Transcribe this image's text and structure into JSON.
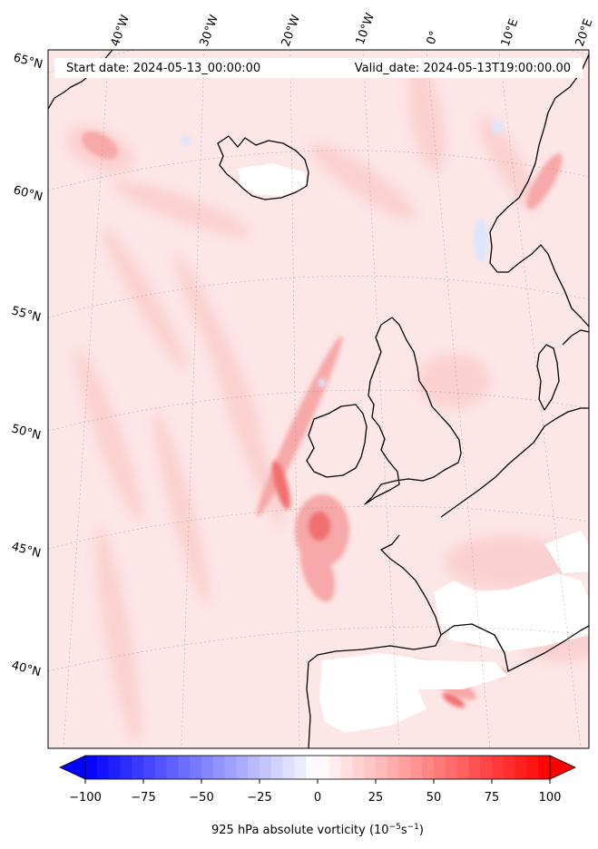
{
  "header": {
    "start_date": "Start date: 2024-05-13_00:00:00",
    "valid_date": "Valid_date: 2024-05-13T19:00:00.00"
  },
  "longitude_labels": [
    "40°W",
    "30°W",
    "20°W",
    "10°W",
    "0°",
    "10°E",
    "20°E"
  ],
  "latitude_labels": [
    "65°N",
    "60°N",
    "55°N",
    "50°N",
    "45°N",
    "40°N"
  ],
  "colorbar": {
    "tick_labels": [
      "−100",
      "−75",
      "−50",
      "−25",
      "0",
      "25",
      "50",
      "75",
      "100"
    ],
    "label": "925 hPa absolute vorticity (10",
    "label_exp1": "−5",
    "label_mid": "s",
    "label_exp2": "−1",
    "label_end": ")",
    "min_color": "#0000ff",
    "mid_color": "#ffffff",
    "max_color": "#ff0000"
  },
  "map_colors": {
    "background": "#fde6e6",
    "positive_light": "#fbd0d0",
    "positive_mid": "#f7a8a8",
    "positive_strong": "#f07070",
    "negative_light": "#dde4fb",
    "land_white": "#ffffff",
    "coastline": "#000000"
  }
}
